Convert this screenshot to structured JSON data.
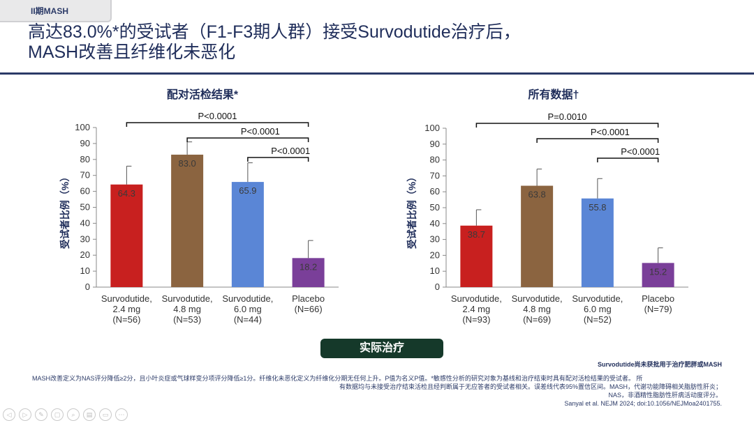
{
  "header": {
    "tag": "II期MASH"
  },
  "title": {
    "line1": "高达83.0%*的受试者（F1-F3期人群）接受Survodutide治疗后，",
    "line2": "MASH改善且纤维化未恶化"
  },
  "colors": {
    "c0": "#c8201f",
    "c1": "#8b6440",
    "c2": "#5a86d6",
    "c3": "#7a3f99",
    "navy": "#1f2d5a"
  },
  "chart_data": [
    {
      "type": "bar",
      "title": "配对活检结果*",
      "ylabel": "受试者比例（%）",
      "ylim": [
        0,
        100
      ],
      "yticks": [
        "0",
        "10",
        "20",
        "30",
        "40",
        "50",
        "60",
        "70",
        "80",
        "90",
        "100"
      ],
      "categories": [
        [
          "Survodutide,",
          "2.4 mg",
          "(N=56)"
        ],
        [
          "Survodutide,",
          "4.8 mg",
          "(N=53)"
        ],
        [
          "Survodutide,",
          "6.0 mg",
          "(N=44)"
        ],
        [
          "Placebo",
          "(N=66)"
        ]
      ],
      "values": [
        64.3,
        83.0,
        65.9,
        18.2
      ],
      "labels": [
        "64.3",
        "83.0",
        "65.9",
        "18.2"
      ],
      "errors": [
        11.5,
        8.0,
        12.0,
        11.0
      ],
      "pvalues": [
        {
          "from": 0,
          "to": 3,
          "text": "P<0.0001"
        },
        {
          "from": 1,
          "to": 3,
          "text": "P<0.0001"
        },
        {
          "from": 2,
          "to": 3,
          "text": "P<0.0001"
        }
      ]
    },
    {
      "type": "bar",
      "title": "所有数据†",
      "ylabel": "受试者比例（%）",
      "ylim": [
        0,
        100
      ],
      "yticks": [
        "0",
        "10",
        "20",
        "30",
        "40",
        "50",
        "60",
        "70",
        "80",
        "90",
        "100"
      ],
      "categories": [
        [
          "Survodutide,",
          "2.4 mg",
          "(N=93)"
        ],
        [
          "Survodutide,",
          "4.8 mg",
          "(N=69)"
        ],
        [
          "Survodutide,",
          "6.0 mg",
          "(N=52)"
        ],
        [
          "Placebo",
          "(N=79)"
        ]
      ],
      "values": [
        38.7,
        63.8,
        55.8,
        15.2
      ],
      "labels": [
        "38.7",
        "63.8",
        "55.8",
        "15.2"
      ],
      "errors": [
        10.0,
        10.5,
        12.5,
        9.5
      ],
      "pvalues": [
        {
          "from": 0,
          "to": 3,
          "text": "P=0.0010"
        },
        {
          "from": 1,
          "to": 3,
          "text": "P<0.0001"
        },
        {
          "from": 2,
          "to": 3,
          "text": "P<0.0001"
        }
      ]
    }
  ],
  "button": {
    "label": "实际治疗"
  },
  "disclaimer": "Survodutide尚未获批用于治疗肥胖或MASH",
  "footnote": {
    "line1": "MASH改善定义为NAS评分降低≥2分，且小叶炎症或气球样变分项评分降低≥1分。纤维化未恶化定义为纤维化分期无任何上升。P值为名义P值。*敏感性分析的研究对象为基线和治疗结束时具有配对活检结果的受试者。 所",
    "line2": "有数据均与未接受治疗结束活检且经判断属于无应答者的受试者相关。误差线代表95%置信区间。MASH，代谢功能障碍相关脂肪性肝炎；",
    "line3": "NAS，非酒精性脂肪性肝病活动度评分。",
    "citation": "Sanyal et al. NEJM 2024; doi:10.1056/NEJMoa2401755."
  },
  "toolbar": [
    "◁",
    "▷",
    "✎",
    "▢",
    "⌕",
    "▤",
    "▭",
    "⋯"
  ]
}
